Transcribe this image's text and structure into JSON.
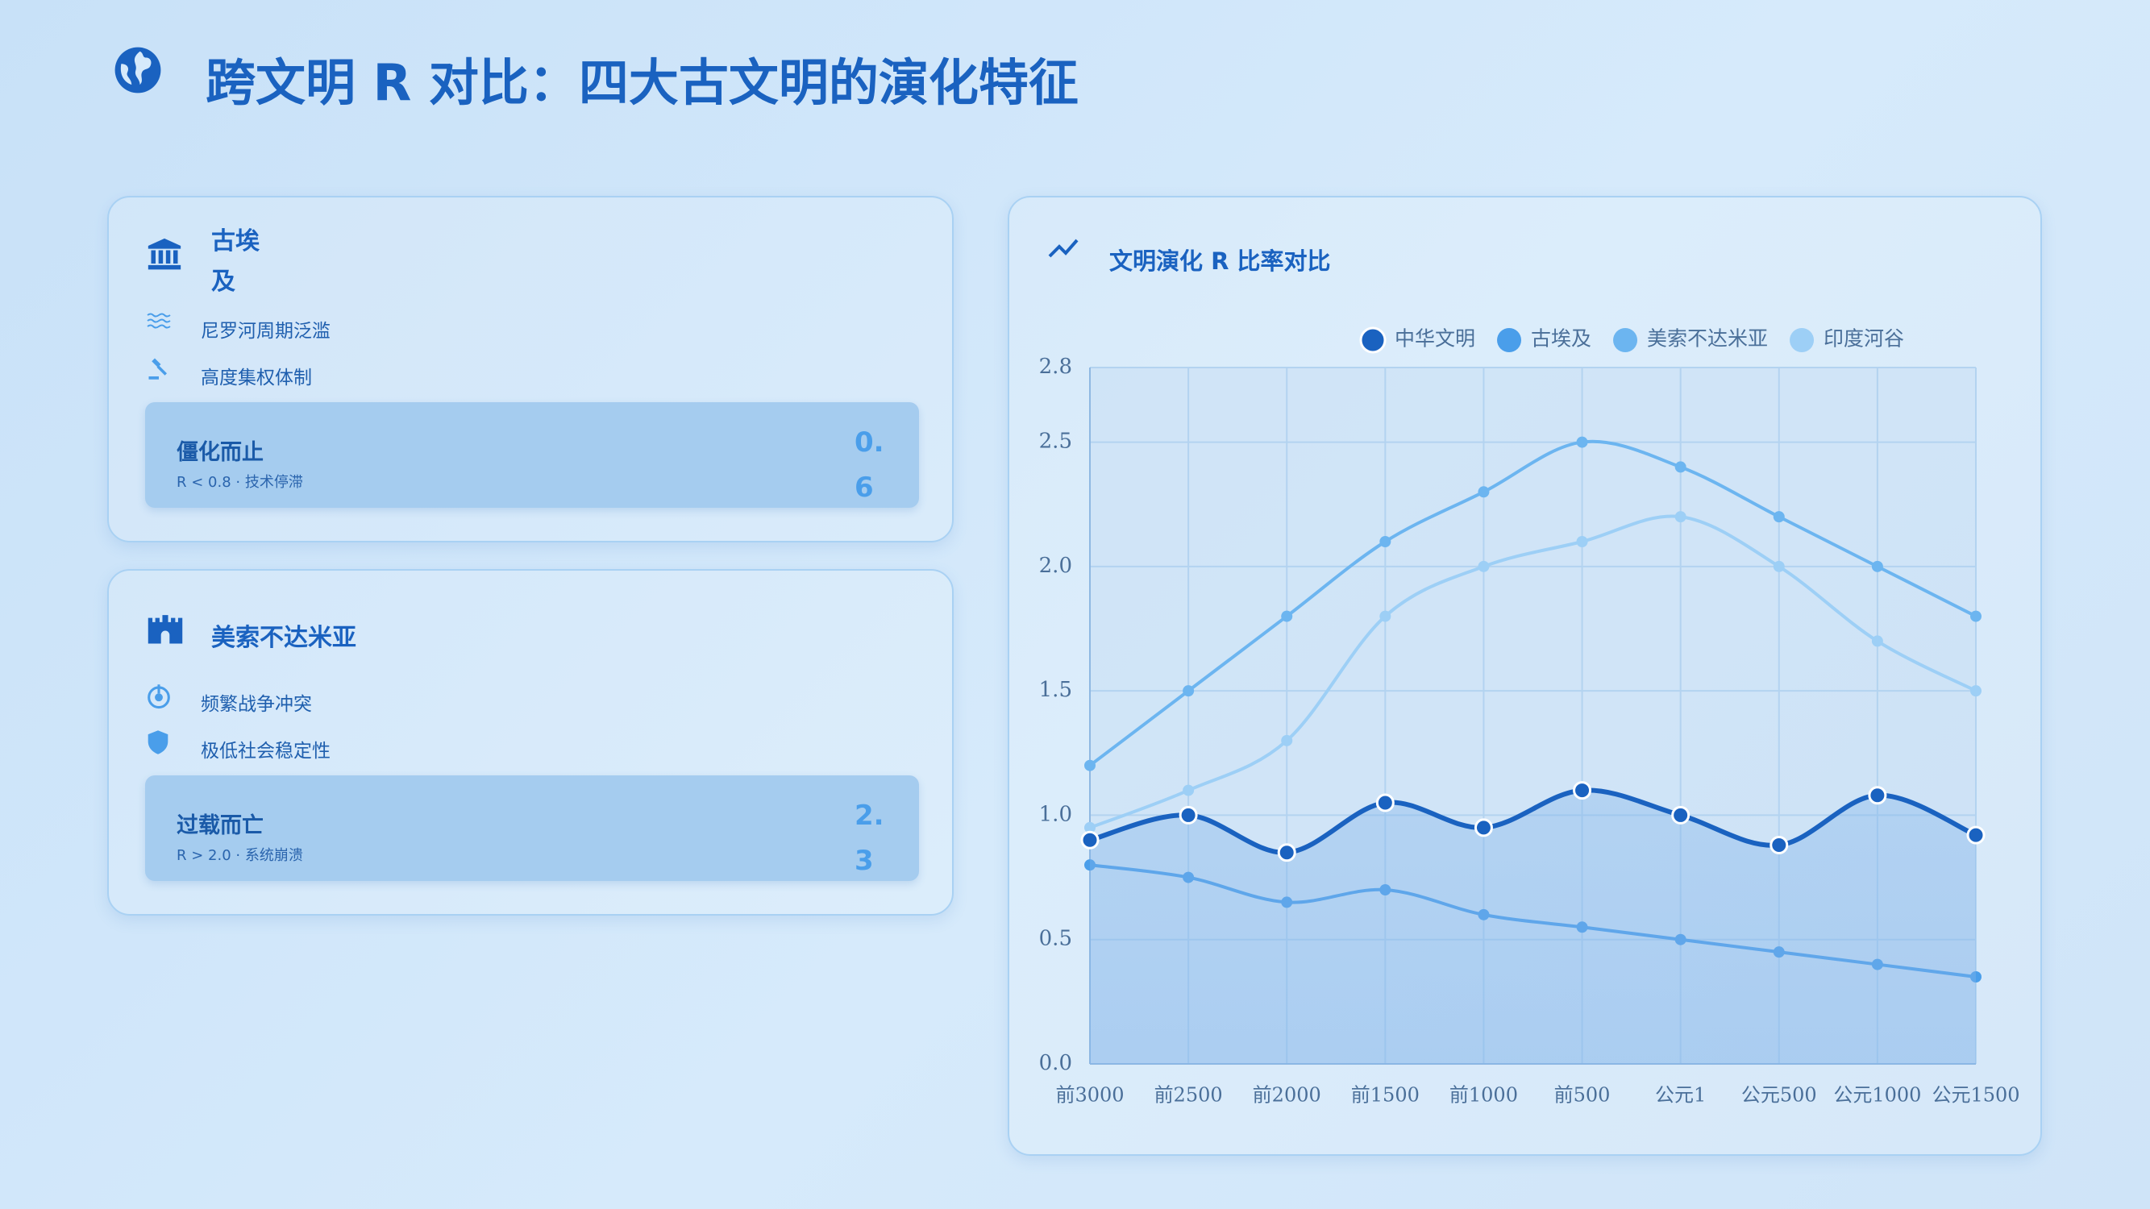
{
  "header": {
    "title": "跨文明 R 对比：四大古文明的演化特征"
  },
  "cards": [
    {
      "title": "古埃及",
      "items": [
        "尼罗河周期泛滥",
        "高度集权体制"
      ],
      "status": "僵化而止",
      "note": "R < 0.8 · 技术停滞",
      "value": 0.6
    },
    {
      "title": "美索不达米亚",
      "items": [
        "频繁战争冲突",
        "极低社会稳定性"
      ],
      "status": "过载而亡",
      "note": "R > 2.0 · 系统崩溃",
      "value": 2.3
    }
  ],
  "chart_data": {
    "type": "line",
    "title": "文明演化 R 比率对比",
    "categories": [
      "前3000",
      "前2500",
      "前2000",
      "前1500",
      "前1000",
      "前500",
      "公元1",
      "公元500",
      "公元1000",
      "公元1500"
    ],
    "series": [
      {
        "name": "中华文明",
        "color": "#1a62c0",
        "area": true,
        "values": [
          0.9,
          1.0,
          0.85,
          1.05,
          0.95,
          1.1,
          1.0,
          0.88,
          1.08,
          0.92
        ]
      },
      {
        "name": "古埃及",
        "color": "#4a9eea",
        "values": [
          0.8,
          0.75,
          0.65,
          0.7,
          0.6,
          0.55,
          0.5,
          0.45,
          0.4,
          0.35
        ]
      },
      {
        "name": "美索不达米亚",
        "color": "#6cb5f0",
        "values": [
          1.2,
          1.5,
          1.8,
          2.1,
          2.3,
          2.5,
          2.4,
          2.2,
          2.0,
          1.8
        ]
      },
      {
        "name": "印度河谷",
        "color": "#9dcff6",
        "values": [
          0.95,
          1.1,
          1.3,
          1.8,
          2.0,
          2.1,
          2.2,
          2.0,
          1.7,
          1.5
        ]
      }
    ],
    "ylim": [
      0,
      2.8
    ],
    "yticks": [
      {
        "value": 0,
        "label": "0.0"
      },
      0.5,
      {
        "value": 1,
        "label": "1.0"
      },
      1.5,
      {
        "value": 2,
        "label": "2.0"
      },
      2.5,
      2.8
    ],
    "grid": true,
    "legend": "top"
  }
}
